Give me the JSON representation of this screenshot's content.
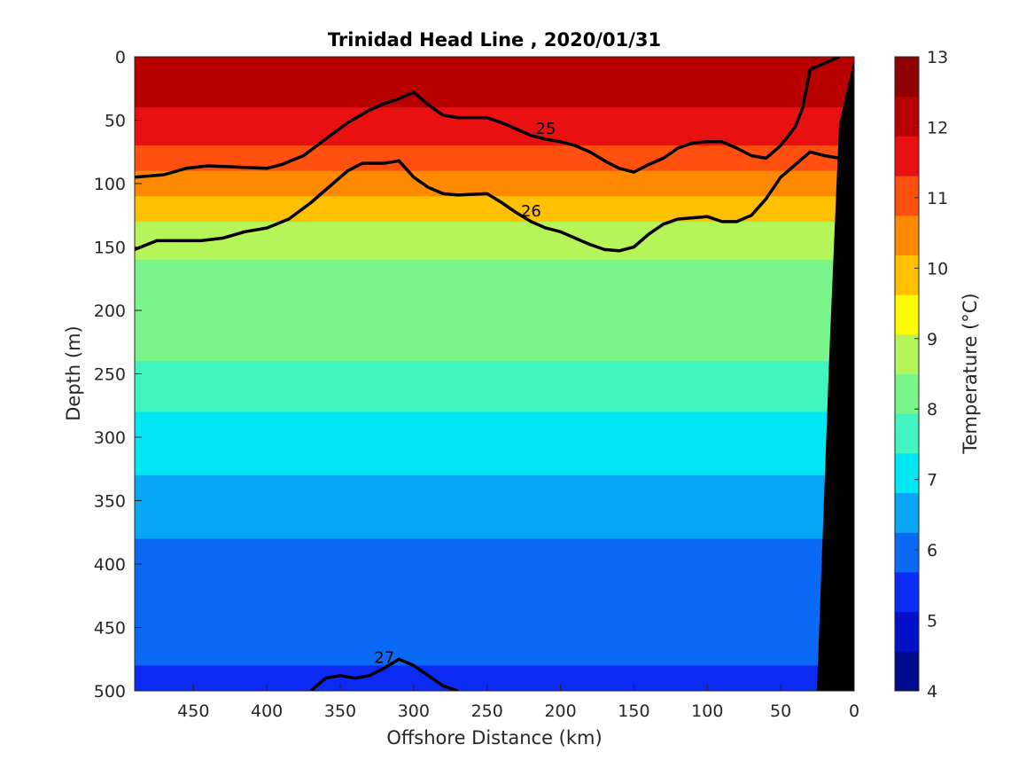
{
  "chart_data": {
    "type": "heatmap",
    "title": "Trinidad Head Line , 2020/01/31",
    "xlabel": "Offshore Distance (km)",
    "ylabel": "Depth (m)",
    "xlim": [
      490,
      0
    ],
    "ylim": [
      0,
      500
    ],
    "x_ticks": [
      "450",
      "400",
      "350",
      "300",
      "250",
      "200",
      "150",
      "100",
      "50",
      "0"
    ],
    "y_ticks": [
      "0",
      "50",
      "100",
      "150",
      "200",
      "250",
      "300",
      "350",
      "400",
      "450",
      "500"
    ],
    "colorbar": {
      "label": "Temperature (°C)",
      "ticks": [
        "4",
        "5",
        "6",
        "7",
        "8",
        "9",
        "10",
        "11",
        "12",
        "13"
      ],
      "range": [
        4,
        13
      ],
      "colors": [
        "#000c8f",
        "#0010c8",
        "#0b2bf5",
        "#0a6af5",
        "#06a8f5",
        "#00e6f2",
        "#41f5c0",
        "#7af58c",
        "#b5f55a",
        "#fdfd00",
        "#ffc000",
        "#ff8a00",
        "#ff5010",
        "#e81010",
        "#b80000",
        "#900000"
      ]
    },
    "temperature_profiles": [
      {
        "depth": 0,
        "temp": 12.0
      },
      {
        "depth": 40,
        "temp": 11.8
      },
      {
        "depth": 70,
        "temp": 11.5
      },
      {
        "depth": 90,
        "temp": 10.8
      },
      {
        "depth": 110,
        "temp": 10.0
      },
      {
        "depth": 130,
        "temp": 9.3
      },
      {
        "depth": 160,
        "temp": 8.7
      },
      {
        "depth": 200,
        "temp": 8.2
      },
      {
        "depth": 240,
        "temp": 7.7
      },
      {
        "depth": 280,
        "temp": 7.3
      },
      {
        "depth": 330,
        "temp": 6.9
      },
      {
        "depth": 380,
        "temp": 6.3
      },
      {
        "depth": 430,
        "temp": 5.9
      },
      {
        "depth": 480,
        "temp": 5.5
      },
      {
        "depth": 500,
        "temp": 5.3
      }
    ],
    "isopycnals": [
      {
        "label": "25",
        "x": [
          490,
          470,
          455,
          440,
          420,
          400,
          390,
          375,
          360,
          345,
          330,
          320,
          310,
          300,
          290,
          280,
          270,
          250,
          240,
          230,
          220,
          210,
          200,
          190,
          180,
          170,
          160,
          150,
          140,
          130,
          120,
          110,
          100,
          90,
          80,
          70,
          60,
          50,
          40,
          35,
          30,
          20,
          10
        ],
        "y": [
          95,
          93,
          88,
          86,
          87,
          88,
          85,
          78,
          65,
          52,
          42,
          37,
          33,
          28,
          38,
          46,
          48,
          48,
          52,
          57,
          62,
          65,
          67,
          70,
          75,
          82,
          88,
          91,
          85,
          80,
          72,
          68,
          67,
          67,
          72,
          78,
          80,
          70,
          55,
          40,
          10,
          5,
          0
        ]
      },
      {
        "label": "26",
        "x": [
          490,
          475,
          460,
          445,
          430,
          415,
          400,
          385,
          370,
          355,
          345,
          335,
          320,
          310,
          300,
          290,
          280,
          270,
          250,
          240,
          230,
          220,
          210,
          200,
          190,
          180,
          170,
          160,
          150,
          140,
          130,
          120,
          110,
          100,
          90,
          80,
          70,
          60,
          50,
          40,
          30,
          20,
          10
        ],
        "y": [
          152,
          145,
          145,
          145,
          143,
          138,
          135,
          128,
          115,
          100,
          90,
          84,
          84,
          82,
          95,
          103,
          108,
          109,
          108,
          115,
          123,
          130,
          135,
          138,
          143,
          148,
          152,
          153,
          150,
          140,
          132,
          128,
          127,
          126,
          130,
          130,
          125,
          112,
          95,
          85,
          75,
          78,
          80
        ]
      },
      {
        "label": "27",
        "x": [
          370,
          360,
          350,
          340,
          330,
          320,
          310,
          300,
          290,
          280,
          270
        ],
        "y": [
          500,
          490,
          488,
          490,
          488,
          482,
          475,
          480,
          488,
          496,
          500
        ]
      }
    ]
  }
}
